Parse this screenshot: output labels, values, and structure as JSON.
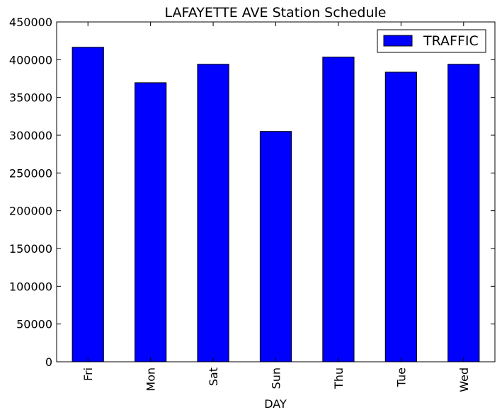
{
  "chart_data": {
    "type": "bar",
    "title": "LAFAYETTE AVE Station Schedule",
    "xlabel": "DAY",
    "ylabel": "",
    "categories": [
      "Fri",
      "Mon",
      "Sat",
      "Sun",
      "Thu",
      "Tue",
      "Wed"
    ],
    "series": [
      {
        "name": "TRAFFIC",
        "color": "#0000ff",
        "values": [
          416500,
          369500,
          394000,
          305000,
          403500,
          383500,
          394000
        ]
      }
    ],
    "ylim": [
      0,
      450000
    ],
    "yticks": [
      0,
      50000,
      100000,
      150000,
      200000,
      250000,
      300000,
      350000,
      400000,
      450000
    ],
    "ytick_labels": [
      "0",
      "50000",
      "100000",
      "150000",
      "200000",
      "250000",
      "300000",
      "350000",
      "400000",
      "450000"
    ],
    "grid": false,
    "legend": "top-right",
    "edge_color": "#000000"
  }
}
